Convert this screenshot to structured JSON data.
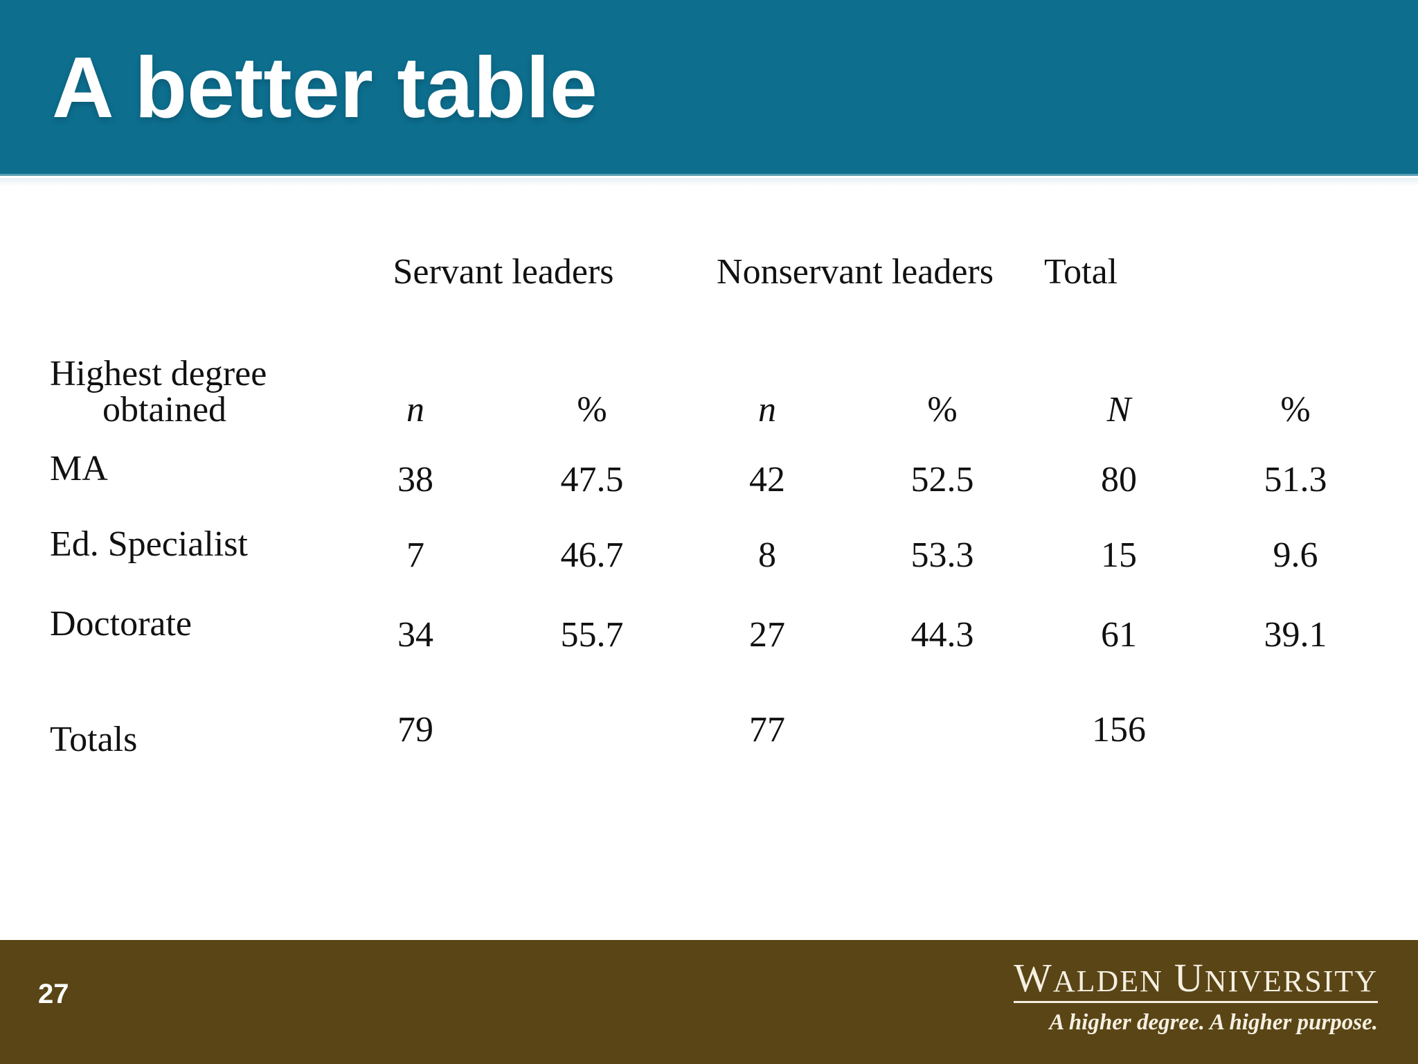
{
  "slide": {
    "title": "A better table",
    "page_number": "27"
  },
  "colors": {
    "header_bg": "#0d6e8e",
    "header_edge": "#5f9fb4",
    "footer_bg": "#5a4516",
    "title_color": "#ffffff",
    "table_color": "#111111",
    "logo_color": "#f5f0e2"
  },
  "chart_data": {
    "type": "table",
    "title": "A better table",
    "group_headers": [
      {
        "label": "Servant leaders"
      },
      {
        "label": "Nonservant leaders"
      },
      {
        "label": "Total"
      }
    ],
    "row_header": {
      "line1": "Highest degree",
      "line2": "obtained"
    },
    "col_headers": [
      "n",
      "%",
      "n",
      "%",
      "N",
      "%"
    ],
    "rows": [
      {
        "label": "MA",
        "values": [
          "38",
          "47.5",
          "42",
          "52.5",
          "80",
          "51.3"
        ]
      },
      {
        "label": "Ed. Specialist",
        "values": [
          "7",
          "46.7",
          "8",
          "53.3",
          "15",
          "9.6"
        ]
      },
      {
        "label": "Doctorate",
        "values": [
          "34",
          "55.7",
          "27",
          "44.3",
          "61",
          "39.1"
        ]
      }
    ],
    "totals": {
      "label": "Totals",
      "servant_n": "79",
      "nonservant_n": "77",
      "grand_N": "156"
    }
  },
  "footer": {
    "logo": {
      "word1_initial": "W",
      "word1_rest": "ALDEN",
      "word2_initial": "U",
      "word2_rest": "NIVERSITY"
    },
    "tagline": "A higher degree. A higher purpose."
  }
}
